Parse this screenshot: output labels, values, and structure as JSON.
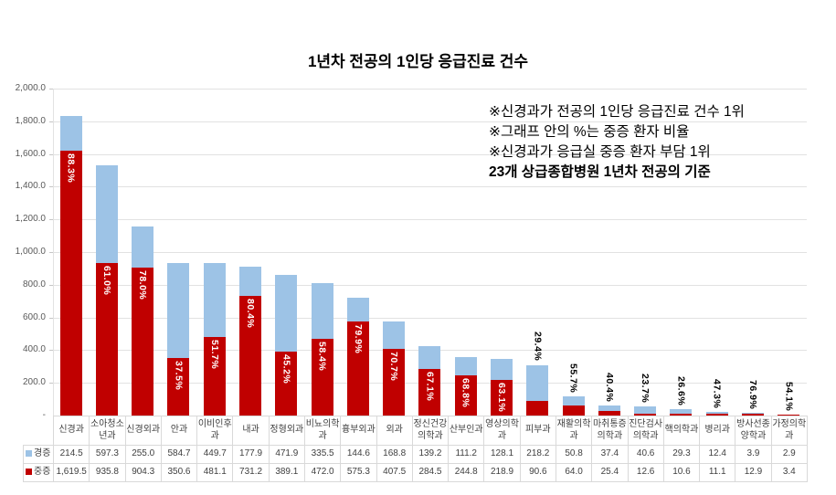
{
  "title": "1년차 전공의 1인당 응급진료 건수",
  "annotations": {
    "lines": [
      {
        "text": "※신경과가 전공의 1인당 응급진료 건수 1위",
        "bold": false
      },
      {
        "text": "※그래프 안의 %는 중증 환자 비율",
        "bold": false
      },
      {
        "text": "※신경과가 응급실 중증 환자 부담 1위",
        "bold": false
      },
      {
        "text": "23개 상급종합병원 1년차 전공의 기준",
        "bold": true
      }
    ]
  },
  "chart_data": {
    "type": "bar",
    "stacked": true,
    "stack_bottom_series": "중증",
    "title": "1년차 전공의 1인당 응급진료 건수",
    "categories": [
      "신경과",
      "소아청소년과",
      "신경외과",
      "안과",
      "이비인후과",
      "내과",
      "정형외과",
      "비뇨의학과",
      "흉부외과",
      "외과",
      "정신건강의학과",
      "산부인과",
      "영상의학과",
      "피부과",
      "재활의학과",
      "마취통증의학과",
      "진단검사의학과",
      "핵의학과",
      "병리과",
      "방사선종양학과",
      "가정의학과"
    ],
    "series": [
      {
        "name": "경증",
        "color": "#9DC3E6",
        "values": [
          214.5,
          597.3,
          255.0,
          584.7,
          449.7,
          177.9,
          471.9,
          335.5,
          144.6,
          168.8,
          139.2,
          111.2,
          128.1,
          218.2,
          50.8,
          37.4,
          40.6,
          29.3,
          12.4,
          3.9,
          2.9
        ]
      },
      {
        "name": "중증",
        "color": "#C00000",
        "values": [
          1619.5,
          935.8,
          904.3,
          350.6,
          481.1,
          731.2,
          389.1,
          472.0,
          575.3,
          407.5,
          284.5,
          244.8,
          218.9,
          90.6,
          64.0,
          25.4,
          12.6,
          10.6,
          11.1,
          12.9,
          3.4
        ]
      }
    ],
    "percent_labels": [
      "88.3%",
      "61.0%",
      "78.0%",
      "37.5%",
      "51.7%",
      "80.4%",
      "45.2%",
      "58.4%",
      "79.9%",
      "70.7%",
      "67.1%",
      "68.8%",
      "63.1%",
      "29.4%",
      "55.7%",
      "40.4%",
      "23.7%",
      "26.6%",
      "47.3%",
      "76.9%",
      "54.1%"
    ],
    "percent_label_inside": [
      true,
      true,
      true,
      true,
      true,
      true,
      true,
      true,
      true,
      true,
      true,
      true,
      true,
      false,
      false,
      false,
      false,
      false,
      false,
      false,
      false
    ],
    "percent_label_meaning": "중증 환자 비율",
    "xlabel": "",
    "ylabel": "",
    "ylim": [
      0,
      2000
    ],
    "ytick_step": 200,
    "y_ticks": [
      "2,000.0",
      "1,800.0",
      "1,600.0",
      "1,400.0",
      "1,200.0",
      "1,000.0",
      "800.0",
      "600.0",
      "400.0",
      "200.0",
      "-"
    ],
    "grid": true,
    "legend_position": "table-left"
  },
  "table": {
    "row_labels": [
      "경증",
      "중증"
    ],
    "legend_colors": [
      "#9DC3E6",
      "#C00000"
    ]
  }
}
